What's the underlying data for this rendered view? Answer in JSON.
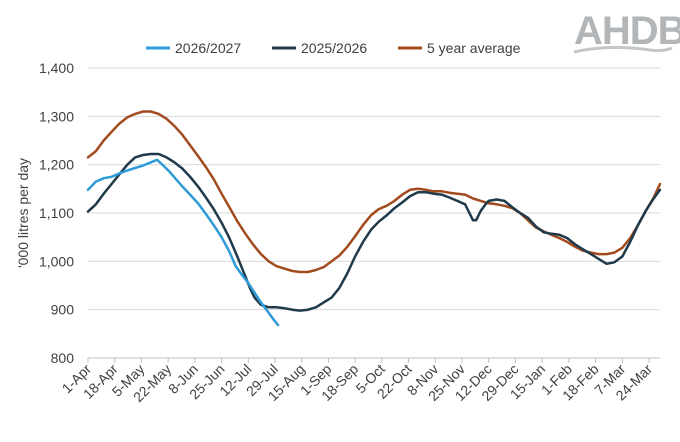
{
  "logo": {
    "text": "AHDB"
  },
  "chart_data": {
    "type": "line",
    "title": "",
    "xlabel": "",
    "ylabel": "'000 litres per day",
    "ylim": [
      800,
      1400
    ],
    "y_ticks": [
      800,
      900,
      1000,
      1100,
      1200,
      1300,
      1400
    ],
    "y_tick_labels": [
      "800",
      "900",
      "1,000",
      "1,100",
      "1,200",
      "1,300",
      "1,400"
    ],
    "grid": "horizontal",
    "legend": "top",
    "x_domain_days": [
      0,
      364
    ],
    "x_ticks": [
      {
        "day": 0,
        "label": "1-Apr"
      },
      {
        "day": 17,
        "label": "18-Apr"
      },
      {
        "day": 34,
        "label": "5-May"
      },
      {
        "day": 51,
        "label": "22-May"
      },
      {
        "day": 68,
        "label": "8-Jun"
      },
      {
        "day": 85,
        "label": "25-Jun"
      },
      {
        "day": 102,
        "label": "12-Jul"
      },
      {
        "day": 119,
        "label": "29-Jul"
      },
      {
        "day": 136,
        "label": "15-Aug"
      },
      {
        "day": 153,
        "label": "1-Sep"
      },
      {
        "day": 170,
        "label": "18-Sep"
      },
      {
        "day": 187,
        "label": "5-Oct"
      },
      {
        "day": 204,
        "label": "22-Oct"
      },
      {
        "day": 221,
        "label": "8-Nov"
      },
      {
        "day": 238,
        "label": "25-Nov"
      },
      {
        "day": 255,
        "label": "12-Dec"
      },
      {
        "day": 272,
        "label": "29-Dec"
      },
      {
        "day": 289,
        "label": "15-Jan"
      },
      {
        "day": 306,
        "label": "1-Feb"
      },
      {
        "day": 323,
        "label": "18-Feb"
      },
      {
        "day": 340,
        "label": "7-Mar"
      },
      {
        "day": 357,
        "label": "24-Mar"
      }
    ],
    "series": [
      {
        "name": "2026/2027",
        "color": "#2e9bd6",
        "width": 2.5,
        "points": [
          [
            0,
            1148
          ],
          [
            5,
            1165
          ],
          [
            10,
            1172
          ],
          [
            15,
            1175
          ],
          [
            20,
            1182
          ],
          [
            25,
            1188
          ],
          [
            30,
            1193
          ],
          [
            35,
            1198
          ],
          [
            40,
            1205
          ],
          [
            44,
            1210
          ],
          [
            48,
            1198
          ],
          [
            52,
            1185
          ],
          [
            56,
            1170
          ],
          [
            60,
            1155
          ],
          [
            65,
            1138
          ],
          [
            70,
            1120
          ],
          [
            75,
            1098
          ],
          [
            80,
            1075
          ],
          [
            85,
            1050
          ],
          [
            90,
            1020
          ],
          [
            94,
            990
          ],
          [
            98,
            972
          ],
          [
            102,
            955
          ],
          [
            106,
            935
          ],
          [
            110,
            915
          ],
          [
            114,
            898
          ],
          [
            118,
            880
          ],
          [
            121,
            868
          ]
        ]
      },
      {
        "name": "2025/2026",
        "color": "#1f3a4a",
        "width": 2.5,
        "points": [
          [
            0,
            1103
          ],
          [
            5,
            1118
          ],
          [
            10,
            1140
          ],
          [
            15,
            1160
          ],
          [
            20,
            1180
          ],
          [
            25,
            1200
          ],
          [
            30,
            1215
          ],
          [
            35,
            1220
          ],
          [
            40,
            1222
          ],
          [
            45,
            1222
          ],
          [
            50,
            1215
          ],
          [
            55,
            1205
          ],
          [
            60,
            1192
          ],
          [
            65,
            1175
          ],
          [
            70,
            1155
          ],
          [
            75,
            1132
          ],
          [
            80,
            1108
          ],
          [
            85,
            1080
          ],
          [
            90,
            1048
          ],
          [
            95,
            1010
          ],
          [
            100,
            970
          ],
          [
            103,
            945
          ],
          [
            106,
            925
          ],
          [
            110,
            910
          ],
          [
            115,
            905
          ],
          [
            120,
            905
          ],
          [
            125,
            903
          ],
          [
            130,
            900
          ],
          [
            135,
            898
          ],
          [
            140,
            900
          ],
          [
            145,
            905
          ],
          [
            150,
            915
          ],
          [
            155,
            925
          ],
          [
            160,
            945
          ],
          [
            165,
            975
          ],
          [
            170,
            1010
          ],
          [
            175,
            1040
          ],
          [
            180,
            1065
          ],
          [
            185,
            1082
          ],
          [
            190,
            1095
          ],
          [
            195,
            1110
          ],
          [
            200,
            1122
          ],
          [
            205,
            1135
          ],
          [
            210,
            1143
          ],
          [
            215,
            1143
          ],
          [
            220,
            1140
          ],
          [
            225,
            1138
          ],
          [
            230,
            1132
          ],
          [
            235,
            1125
          ],
          [
            240,
            1118
          ],
          [
            243,
            1098
          ],
          [
            245,
            1085
          ],
          [
            247,
            1085
          ],
          [
            250,
            1105
          ],
          [
            253,
            1118
          ],
          [
            255,
            1125
          ],
          [
            260,
            1128
          ],
          [
            265,
            1125
          ],
          [
            270,
            1112
          ],
          [
            275,
            1100
          ],
          [
            280,
            1090
          ],
          [
            285,
            1072
          ],
          [
            290,
            1060
          ],
          [
            295,
            1057
          ],
          [
            300,
            1055
          ],
          [
            305,
            1048
          ],
          [
            310,
            1035
          ],
          [
            315,
            1025
          ],
          [
            320,
            1015
          ],
          [
            325,
            1005
          ],
          [
            330,
            995
          ],
          [
            335,
            998
          ],
          [
            340,
            1010
          ],
          [
            345,
            1040
          ],
          [
            350,
            1075
          ],
          [
            355,
            1105
          ],
          [
            360,
            1130
          ],
          [
            364,
            1148
          ]
        ]
      },
      {
        "name": "5 year average",
        "color": "#a24b1e",
        "width": 2.5,
        "points": [
          [
            0,
            1215
          ],
          [
            5,
            1228
          ],
          [
            10,
            1250
          ],
          [
            15,
            1268
          ],
          [
            20,
            1285
          ],
          [
            25,
            1298
          ],
          [
            30,
            1305
          ],
          [
            35,
            1310
          ],
          [
            40,
            1310
          ],
          [
            45,
            1305
          ],
          [
            50,
            1295
          ],
          [
            55,
            1280
          ],
          [
            60,
            1262
          ],
          [
            65,
            1240
          ],
          [
            70,
            1218
          ],
          [
            75,
            1195
          ],
          [
            80,
            1170
          ],
          [
            85,
            1140
          ],
          [
            90,
            1112
          ],
          [
            95,
            1083
          ],
          [
            100,
            1058
          ],
          [
            105,
            1035
          ],
          [
            110,
            1015
          ],
          [
            115,
            1000
          ],
          [
            120,
            990
          ],
          [
            125,
            985
          ],
          [
            130,
            980
          ],
          [
            135,
            978
          ],
          [
            140,
            978
          ],
          [
            145,
            982
          ],
          [
            150,
            988
          ],
          [
            155,
            1000
          ],
          [
            160,
            1012
          ],
          [
            165,
            1030
          ],
          [
            170,
            1052
          ],
          [
            175,
            1075
          ],
          [
            180,
            1095
          ],
          [
            185,
            1108
          ],
          [
            190,
            1115
          ],
          [
            195,
            1125
          ],
          [
            200,
            1138
          ],
          [
            205,
            1148
          ],
          [
            210,
            1150
          ],
          [
            215,
            1148
          ],
          [
            220,
            1145
          ],
          [
            225,
            1145
          ],
          [
            230,
            1142
          ],
          [
            235,
            1140
          ],
          [
            240,
            1138
          ],
          [
            245,
            1130
          ],
          [
            250,
            1125
          ],
          [
            255,
            1120
          ],
          [
            260,
            1118
          ],
          [
            265,
            1115
          ],
          [
            270,
            1110
          ],
          [
            275,
            1100
          ],
          [
            280,
            1085
          ],
          [
            285,
            1070
          ],
          [
            290,
            1062
          ],
          [
            295,
            1055
          ],
          [
            300,
            1048
          ],
          [
            305,
            1040
          ],
          [
            310,
            1030
          ],
          [
            315,
            1022
          ],
          [
            320,
            1018
          ],
          [
            325,
            1015
          ],
          [
            330,
            1015
          ],
          [
            335,
            1018
          ],
          [
            340,
            1028
          ],
          [
            345,
            1048
          ],
          [
            350,
            1075
          ],
          [
            355,
            1105
          ],
          [
            360,
            1132
          ],
          [
            364,
            1160
          ]
        ]
      }
    ]
  }
}
